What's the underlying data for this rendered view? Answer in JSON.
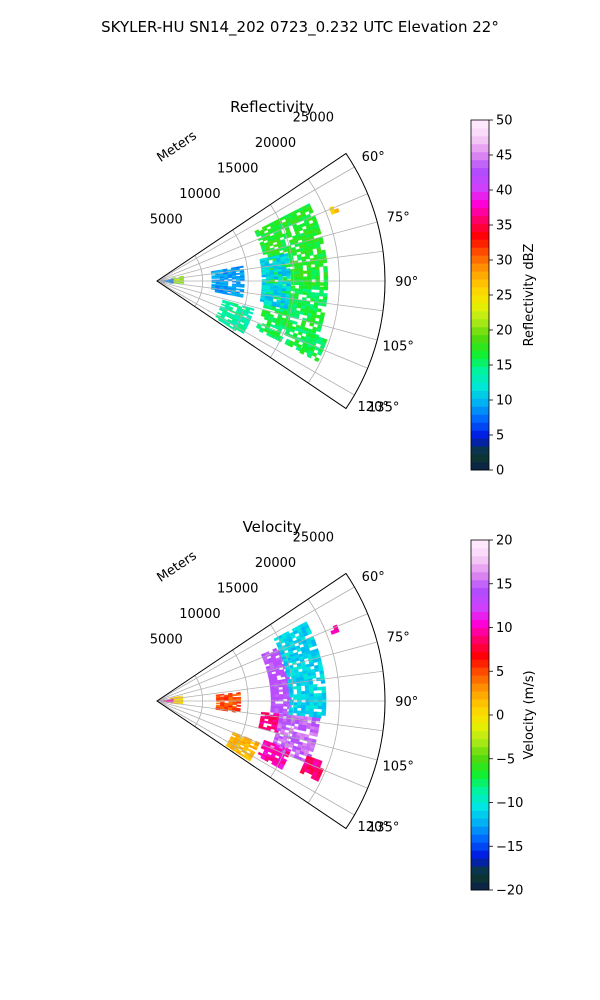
{
  "figure": {
    "title": "SKYLER-HU  SN14_202  0723_0.232 UTC Elevation 22°"
  },
  "chart_data": [
    {
      "type": "heatmap",
      "projection": "polar-sector",
      "title": "Reflectivity",
      "radial_label": "Meters",
      "radial_ticks": [
        5000,
        10000,
        15000,
        20000,
        25000
      ],
      "radial_tick_labels": [
        "5000",
        "10000",
        "15000",
        "20000",
        "25000"
      ],
      "rmax": 25000,
      "theta_range_deg": [
        56,
        124
      ],
      "theta_ticks": [
        60,
        75,
        90,
        105,
        120,
        135
      ],
      "theta_tick_labels": [
        "60°",
        "75°",
        "90°",
        "105°",
        "120°",
        "135°"
      ],
      "grid": true,
      "colorbar": {
        "label": "Reflectivity dBZ",
        "min": 0,
        "max": 50,
        "ticks": [
          0,
          5,
          10,
          15,
          20,
          25,
          30,
          35,
          40,
          45,
          50
        ],
        "tick_labels": [
          "0",
          "5",
          "10",
          "15",
          "20",
          "25",
          "30",
          "35",
          "40",
          "45",
          "50"
        ],
        "colormap": [
          "#0b1f4a",
          "#0c3d2b",
          "#0016e0",
          "#0062ff",
          "#00aef5",
          "#00e6d8",
          "#00f39c",
          "#12f02a",
          "#58d80c",
          "#b4ec18",
          "#f0ee00",
          "#ffcd00",
          "#ff9a00",
          "#ff5500",
          "#ff0000",
          "#ff0066",
          "#ff00d9",
          "#cc44ff",
          "#b04cff",
          "#e08cf0",
          "#f8d4f8",
          "#ffeefe"
        ]
      },
      "regions": [
        {
          "r": [
            6000,
            9500
          ],
          "theta": [
            80,
            100
          ],
          "value": 9
        },
        {
          "r": [
            1600,
            2700
          ],
          "theta": [
            79,
            97
          ],
          "value": 21
        },
        {
          "r": [
            0,
            1800
          ],
          "theta": [
            82,
            99
          ],
          "value": 8
        },
        {
          "r": [
            12000,
            18500
          ],
          "theta": [
            63,
            92
          ],
          "value": 17
        },
        {
          "r": [
            12000,
            18500
          ],
          "theta": [
            92,
            116
          ],
          "value": 16
        },
        {
          "r": [
            11500,
            14500
          ],
          "theta": [
            78,
            102
          ],
          "value": 11
        },
        {
          "r": [
            7500,
            11000
          ],
          "theta": [
            106,
            122
          ],
          "value": 14
        },
        {
          "r": [
            20500,
            21000
          ],
          "theta": [
            67,
            69
          ],
          "value": 27
        },
        {
          "r": [
            17500,
            19500
          ],
          "theta": [
            109,
            116
          ],
          "value": 16
        }
      ]
    },
    {
      "type": "heatmap",
      "projection": "polar-sector",
      "title": "Velocity",
      "radial_label": "Meters",
      "radial_ticks": [
        5000,
        10000,
        15000,
        20000,
        25000
      ],
      "radial_tick_labels": [
        "5000",
        "10000",
        "15000",
        "20000",
        "25000"
      ],
      "rmax": 25000,
      "theta_range_deg": [
        56,
        124
      ],
      "theta_ticks": [
        60,
        75,
        90,
        105,
        120,
        135
      ],
      "theta_tick_labels": [
        "60°",
        "75°",
        "90°",
        "105°",
        "120°",
        "135°"
      ],
      "grid": true,
      "colorbar": {
        "label": "Velocity (m/s)",
        "min": -20,
        "max": 20,
        "ticks": [
          -20,
          -15,
          -10,
          -5,
          0,
          5,
          10,
          15,
          20
        ],
        "tick_labels": [
          "−20",
          "−15",
          "−10",
          "−5",
          "0",
          "5",
          "10",
          "15",
          "20"
        ],
        "colormap": [
          "#0b1f4a",
          "#0c3d2b",
          "#0016e0",
          "#0062ff",
          "#00aef5",
          "#00e6e6",
          "#00f39c",
          "#12f02a",
          "#58d80c",
          "#b4ec18",
          "#f0ee00",
          "#ffcd00",
          "#ff9a00",
          "#ff5500",
          "#ff0000",
          "#ff0066",
          "#ff00d9",
          "#cc44ff",
          "#b04cff",
          "#e08cf0",
          "#f8d4f8",
          "#ffeefe"
        ]
      },
      "regions": [
        {
          "r": [
            12500,
            14500
          ],
          "theta": [
            66,
            100
          ],
          "value": 14
        },
        {
          "r": [
            14500,
            18500
          ],
          "theta": [
            62,
            96
          ],
          "value": -11
        },
        {
          "r": [
            11500,
            13500
          ],
          "theta": [
            96,
            104
          ],
          "value": 9
        },
        {
          "r": [
            13500,
            18000
          ],
          "theta": [
            96,
            112
          ],
          "value": 15
        },
        {
          "r": [
            12500,
            15500
          ],
          "theta": [
            110,
            118
          ],
          "value": 10
        },
        {
          "r": [
            9000,
            12000
          ],
          "theta": [
            112,
            122
          ],
          "value": 2
        },
        {
          "r": [
            1500,
            2600
          ],
          "theta": [
            78,
            98
          ],
          "value": 1
        },
        {
          "r": [
            0,
            1800
          ],
          "theta": [
            82,
            98
          ],
          "value": 10
        },
        {
          "r": [
            6500,
            9000
          ],
          "theta": [
            84,
            98
          ],
          "value": 5
        },
        {
          "r": [
            20500,
            21000
          ],
          "theta": [
            67,
            69
          ],
          "value": 10
        },
        {
          "r": [
            17500,
            19500
          ],
          "theta": [
            110,
            116
          ],
          "value": 9
        }
      ]
    }
  ]
}
